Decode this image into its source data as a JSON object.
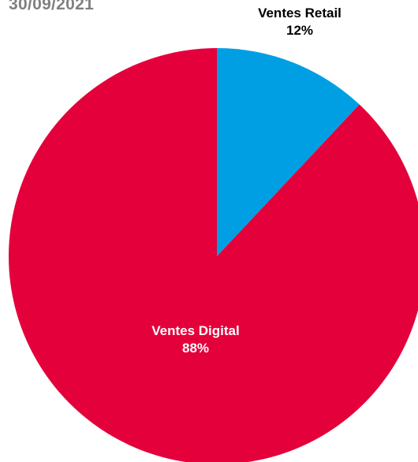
{
  "header": {
    "date": "30/09/2021"
  },
  "chart_data": {
    "type": "pie",
    "title": "",
    "start_angle_deg": 0,
    "direction": "clockwise",
    "legend": "none",
    "slices": [
      {
        "name": "Ventes Retail",
        "value": 12,
        "percent_label": "12%",
        "color": "#009FE3",
        "label_color": "#000000",
        "label_position": "outside"
      },
      {
        "name": "Ventes Digital",
        "value": 88,
        "percent_label": "88%",
        "color": "#E4003A",
        "label_color": "#ffffff",
        "label_position": "inside"
      }
    ]
  }
}
